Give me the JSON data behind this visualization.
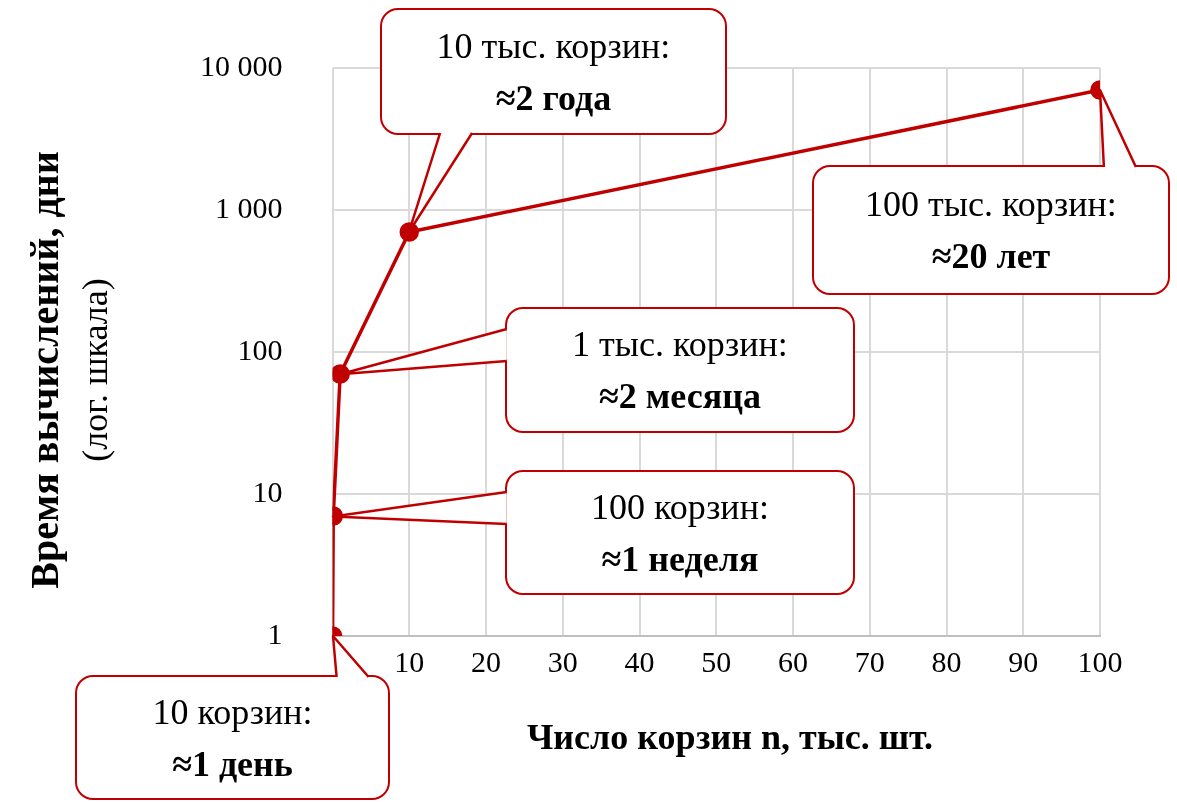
{
  "chart_data": {
    "type": "line",
    "xlabel": "Число корзин n, тыс. шт.",
    "ylabel": "Время вычислений, дни\n(лог. шкала)",
    "x": [
      0.01,
      0.1,
      1,
      10,
      100
    ],
    "series": [
      {
        "color": "#c00000",
        "values": [
          1,
          7,
          70,
          700,
          7000
        ]
      }
    ],
    "xlim": [
      0,
      100
    ],
    "xticks": [
      {
        "value": 0,
        "label": null
      },
      10,
      20,
      30,
      40,
      50,
      60,
      70,
      80,
      90,
      100
    ],
    "ylim": [
      1,
      10000
    ],
    "yticks": [
      1,
      10,
      100,
      {
        "value": 1000,
        "label": "1 000"
      },
      {
        "value": 10000,
        "label": "10 000"
      }
    ],
    "log": "y",
    "grid": true,
    "legend": false,
    "marker": "circle",
    "line_style": "solid",
    "annotations": [
      {
        "text": "10 корзин:\n≈1 день",
        "x": 0.01,
        "y": 1
      },
      "100 корзин:\n≈1 неделя",
      "1 тыс. корзин:\n≈2 месяца",
      "10 тыс. корзин:\n≈2 года",
      {
        "text": "100 тыс. корзин:\n≈20 лет",
        "x": 100,
        "y": 7000
      }
    ]
  }
}
